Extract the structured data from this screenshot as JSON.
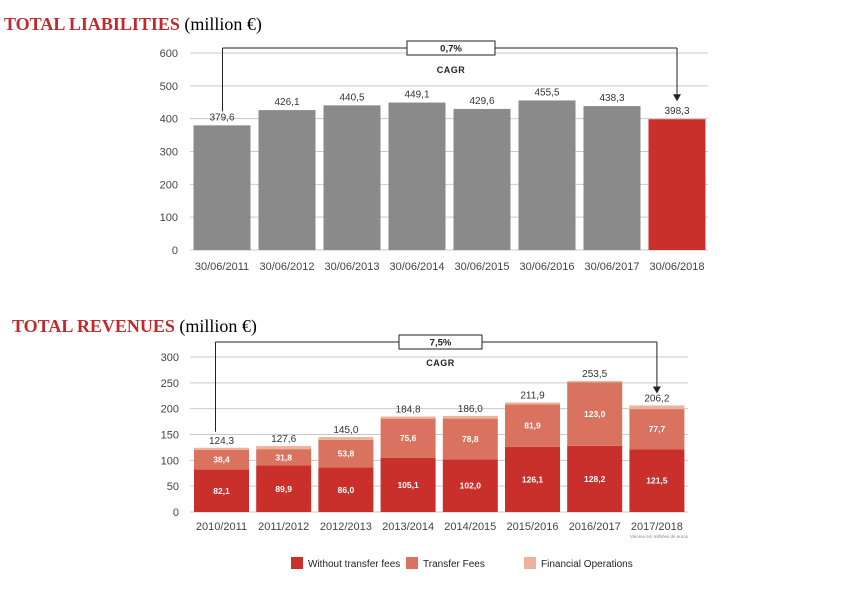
{
  "chart_data": [
    {
      "type": "bar",
      "title": "TOTAL LIABILITIES",
      "unit": "(million €)",
      "categories": [
        "30/06/2011",
        "30/06/2012",
        "30/06/2013",
        "30/06/2014",
        "30/06/2015",
        "30/06/2016",
        "30/06/2017",
        "30/06/2018"
      ],
      "values": [
        379.6,
        426.1,
        440.5,
        449.1,
        429.6,
        455.5,
        438.3,
        398.3
      ],
      "value_labels": [
        "379,6",
        "426,1",
        "440,5",
        "449,1",
        "429,6",
        "455,5",
        "438,3",
        "398,3"
      ],
      "yticks": [
        "0",
        "100",
        "200",
        "300",
        "400",
        "500",
        "600"
      ],
      "ylim": [
        0,
        600
      ],
      "grid": true,
      "highlight_index": 7,
      "colors": {
        "bar": "#8a8a8a",
        "highlight": "#c9302c"
      },
      "cagr": {
        "value": "0,7%",
        "label": "CAGR",
        "from_index": 0,
        "to_index": 7
      }
    },
    {
      "type": "stacked-bar",
      "title": "TOTAL REVENUES",
      "unit": "(million €)",
      "categories": [
        "2010/2011",
        "2011/2012",
        "2012/2013",
        "2013/2014",
        "2014/2015",
        "2015/2016",
        "2016/2017",
        "2017/2018"
      ],
      "series": [
        {
          "name": "Without transfer fees",
          "color": "#c9302c",
          "values": [
            82.1,
            89.9,
            86.0,
            105.1,
            102.0,
            126.1,
            128.2,
            121.5
          ],
          "labels": [
            "82,1",
            "89,9",
            "86,0",
            "105,1",
            "102,0",
            "126,1",
            "128,2",
            "121,5"
          ]
        },
        {
          "name": "Transfer Fees",
          "color": "#d9735f",
          "values": [
            38.4,
            31.8,
            53.8,
            75.6,
            78.8,
            81.9,
            123.0,
            77.7
          ],
          "labels": [
            "38,4",
            "31,8",
            "53,8",
            "75,6",
            "78,8",
            "81,9",
            "123,0",
            "77,7"
          ]
        },
        {
          "name": "Financial Operations",
          "color": "#ecb39c",
          "values": [
            3.8,
            5.9,
            5.2,
            4.1,
            5.2,
            3.9,
            2.3,
            7.0
          ],
          "labels": []
        }
      ],
      "totals": [
        124.3,
        127.6,
        145.0,
        184.8,
        186.0,
        211.9,
        253.5,
        206.2
      ],
      "total_labels": [
        "124,3",
        "127,6",
        "145,0",
        "184,8",
        "186,0",
        "211,9",
        "253,5",
        "206,2"
      ],
      "yticks": [
        "0",
        "50",
        "100",
        "150",
        "200",
        "250",
        "300"
      ],
      "ylim": [
        0,
        300
      ],
      "grid": true,
      "legend_position": "bottom",
      "note": "Valores em milhões de euros",
      "cagr": {
        "value": "7,5%",
        "label": "CAGR",
        "from_index": 0,
        "to_index": 7
      }
    }
  ]
}
